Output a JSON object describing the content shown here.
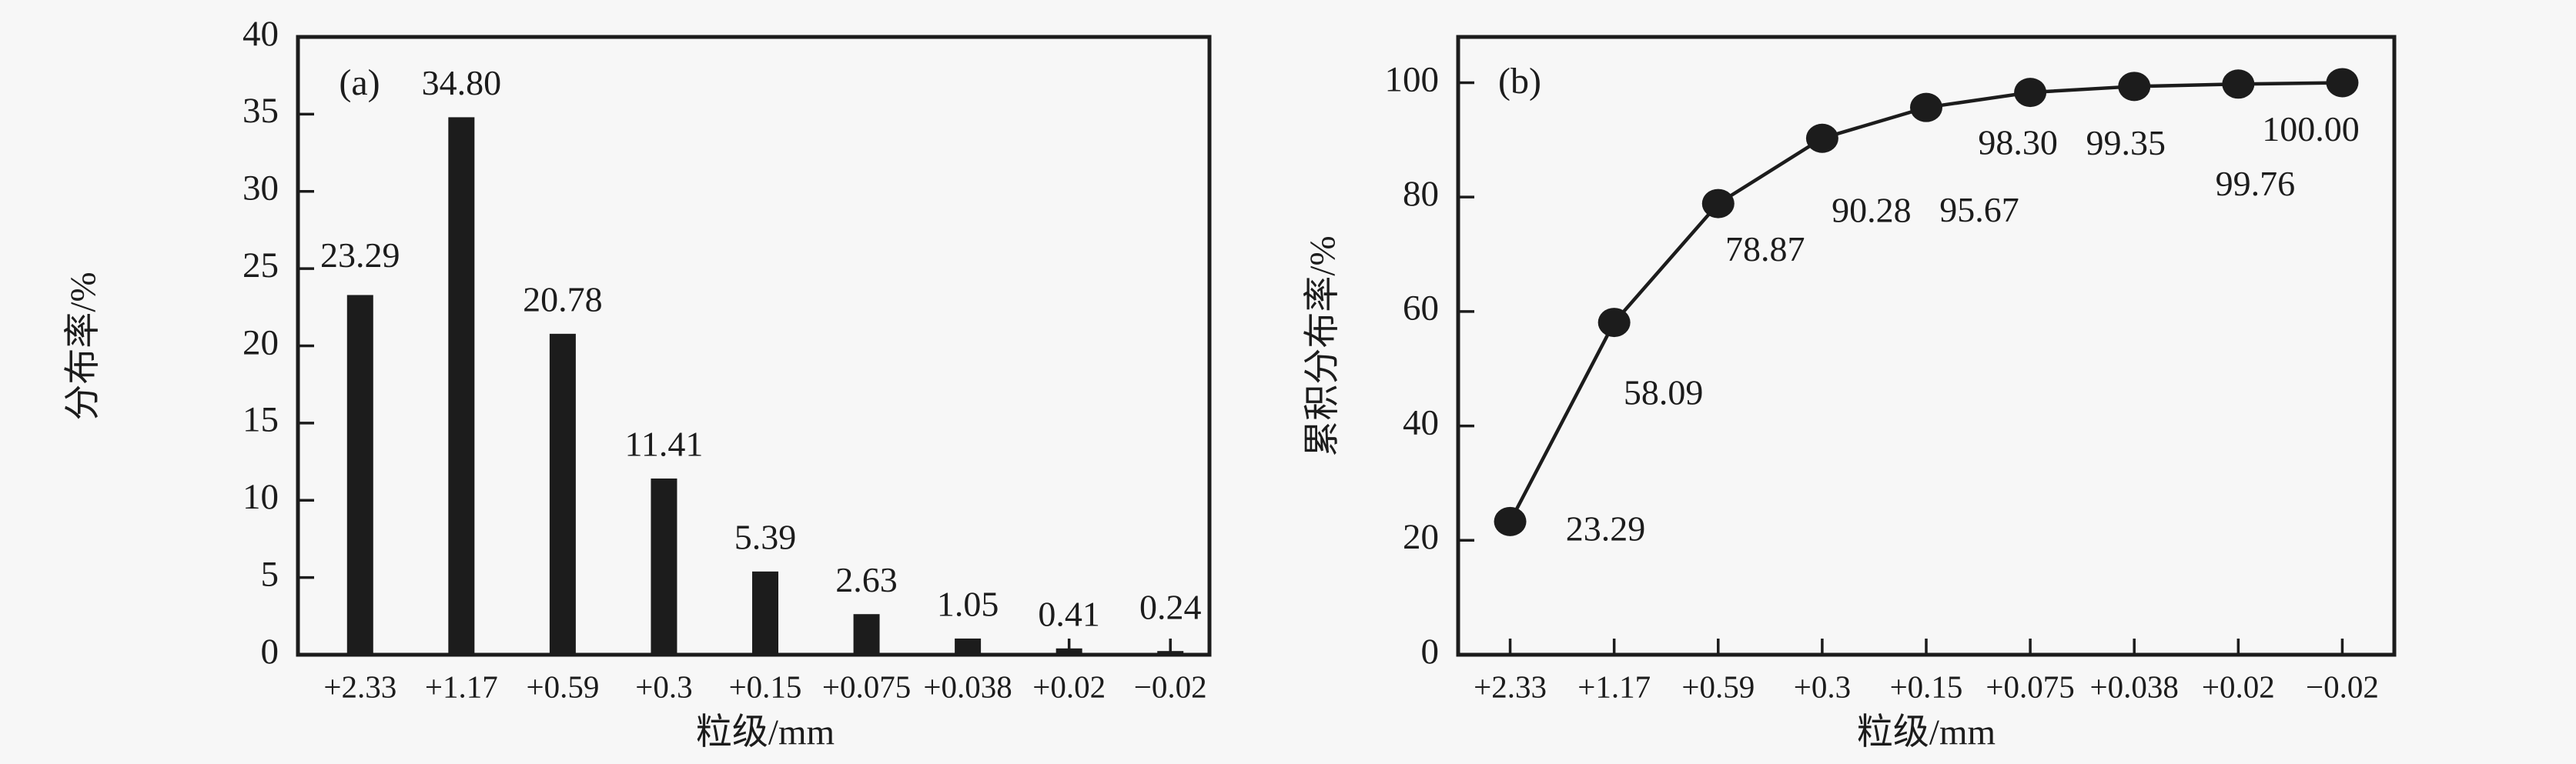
{
  "figure": {
    "background": "#f7f7f7",
    "ink": "#1c1c1c"
  },
  "chart_data": [
    {
      "type": "bar",
      "panel": "(a)",
      "title": "",
      "xlabel": "粒级/mm",
      "ylabel": "分布率/%",
      "categories": [
        "+2.33",
        "+1.17",
        "+0.59",
        "+0.3",
        "+0.15",
        "+0.075",
        "+0.038",
        "+0.02",
        "−0.02"
      ],
      "values": [
        23.29,
        34.8,
        20.78,
        11.41,
        5.39,
        2.63,
        1.05,
        0.41,
        0.24
      ],
      "value_labels": [
        "23.29",
        "34.80",
        "20.78",
        "11.41",
        "5.39",
        "2.63",
        "1.05",
        "0.41",
        "0.24"
      ],
      "ylim": [
        0,
        40
      ],
      "yticks": [
        0,
        5,
        10,
        15,
        20,
        25,
        30,
        35,
        40
      ],
      "ytick_labels": [
        "0",
        "5",
        "10",
        "15",
        "20",
        "25",
        "30",
        "35",
        "40"
      ],
      "grid": false,
      "legend": null,
      "bar_color": "#1c1c1c",
      "box": true
    },
    {
      "type": "line",
      "panel": "(b)",
      "title": "",
      "xlabel": "粒级/mm",
      "ylabel": "累积分布率/%",
      "categories": [
        "+2.33",
        "+1.17",
        "+0.59",
        "+0.3",
        "+0.15",
        "+0.075",
        "+0.038",
        "+0.02",
        "−0.02"
      ],
      "values": [
        23.29,
        58.09,
        78.87,
        90.28,
        95.67,
        98.3,
        99.35,
        99.76,
        100.0
      ],
      "value_labels": [
        "23.29",
        "58.09",
        "78.87",
        "90.28",
        "95.67",
        "98.30",
        "99.35",
        "99.76",
        "100.00"
      ],
      "ylim": [
        0,
        108
      ],
      "yticks": [
        0,
        20,
        40,
        60,
        80,
        100
      ],
      "ytick_labels": [
        "0",
        "20",
        "40",
        "60",
        "80",
        "100"
      ],
      "grid": false,
      "legend": null,
      "marker": "filled-circle",
      "line_color": "#1c1c1c",
      "box": true
    }
  ]
}
